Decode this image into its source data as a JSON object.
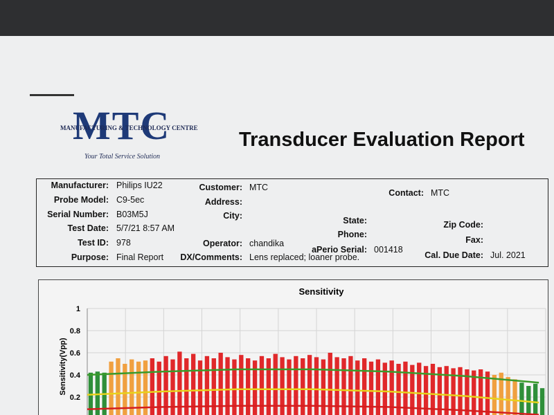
{
  "header": {
    "logo": "MTC",
    "company": "MANUFACTURING & TECHNOLOGY CENTRE",
    "tagline": "Your Total Service Solution",
    "title": "Transducer Evaluation Report"
  },
  "fields": [
    {
      "label": "Manufacturer:",
      "value": "Philips IU22"
    },
    {
      "label": "Probe Model:",
      "value": "C9-5ec"
    },
    {
      "label": "Serial Number:",
      "value": "B03M5J"
    },
    {
      "label": "Test Date:",
      "value": "5/7/21 8:57 AM"
    },
    {
      "label": "Test ID:",
      "value": "978"
    },
    {
      "label": "Purpose:",
      "value": "Final Report"
    },
    {
      "label": "Customer:",
      "value": "MTC"
    },
    {
      "label": "Address:"
    },
    {
      "label": "City:"
    },
    {
      "label": "Operator:",
      "value": "chandika"
    },
    {
      "label": "DX/Comments:",
      "value": "Lens replaced; loaner probe."
    },
    {
      "label": "State:"
    },
    {
      "label": "Phone:"
    },
    {
      "label": "aPerio Serial:",
      "value": "001418"
    },
    {
      "label": "Contact:",
      "value": "MTC"
    },
    {
      "label": "Zip Code:"
    },
    {
      "label": "Fax:"
    },
    {
      "label": "Cal. Due Date:",
      "value": "Jul. 2021"
    }
  ],
  "chart_data": {
    "type": "bar",
    "title": "Sensitivity",
    "y_label": "Sensitivity(Vpp)",
    "xlim": [
      0,
      67
    ],
    "ylim": [
      0,
      1
    ],
    "yticks": [
      0.2,
      0.4,
      0.6,
      0.8,
      1
    ],
    "grid": true,
    "series": [
      {
        "color": "#2f8f3a",
        "x": [
          0,
          1,
          2
        ],
        "values": [
          0.42,
          0.43,
          0.42
        ]
      },
      {
        "color": "#f0a040",
        "x": [
          3,
          4,
          5,
          6,
          7,
          8
        ],
        "values": [
          0.52,
          0.55,
          0.5,
          0.54,
          0.52,
          0.53
        ]
      },
      {
        "color": "#e0282a",
        "x": [
          9,
          10,
          11,
          12,
          13,
          14,
          15,
          16,
          17,
          18,
          19,
          20,
          21,
          22,
          23,
          24,
          25,
          26,
          27,
          28,
          29,
          30,
          31,
          32,
          33,
          34,
          35,
          36,
          37,
          38,
          39,
          40,
          41,
          42,
          43,
          44,
          45,
          46,
          47,
          48,
          49,
          50,
          51,
          52,
          53,
          54,
          55,
          56,
          57,
          58
        ],
        "values": [
          0.55,
          0.52,
          0.57,
          0.54,
          0.61,
          0.55,
          0.59,
          0.53,
          0.57,
          0.55,
          0.6,
          0.56,
          0.54,
          0.58,
          0.55,
          0.53,
          0.57,
          0.55,
          0.59,
          0.56,
          0.54,
          0.57,
          0.55,
          0.58,
          0.56,
          0.54,
          0.6,
          0.56,
          0.55,
          0.57,
          0.53,
          0.55,
          0.52,
          0.54,
          0.51,
          0.53,
          0.5,
          0.52,
          0.49,
          0.51,
          0.48,
          0.5,
          0.47,
          0.48,
          0.46,
          0.47,
          0.45,
          0.44,
          0.45,
          0.43
        ]
      },
      {
        "color": "#f0a040",
        "x": [
          59,
          60,
          61,
          62
        ],
        "values": [
          0.4,
          0.42,
          0.38,
          0.36
        ]
      },
      {
        "color": "#2f8f3a",
        "x": [
          63,
          64,
          65,
          66
        ],
        "values": [
          0.33,
          0.3,
          0.32,
          0.28
        ]
      }
    ],
    "lines": [
      {
        "color": "#3a9a2a",
        "x": [
          0,
          11,
          22,
          33,
          44,
          55,
          66
        ],
        "values": [
          0.4,
          0.43,
          0.45,
          0.45,
          0.43,
          0.39,
          0.33
        ]
      },
      {
        "color": "#e8d21c",
        "x": [
          0,
          11,
          22,
          33,
          44,
          55,
          66
        ],
        "values": [
          0.22,
          0.25,
          0.27,
          0.27,
          0.25,
          0.21,
          0.15
        ]
      },
      {
        "color": "#d41e1e",
        "x": [
          0,
          11,
          22,
          33,
          44,
          55,
          66
        ],
        "values": [
          0.09,
          0.11,
          0.12,
          0.12,
          0.11,
          0.08,
          0.04
        ]
      }
    ]
  }
}
